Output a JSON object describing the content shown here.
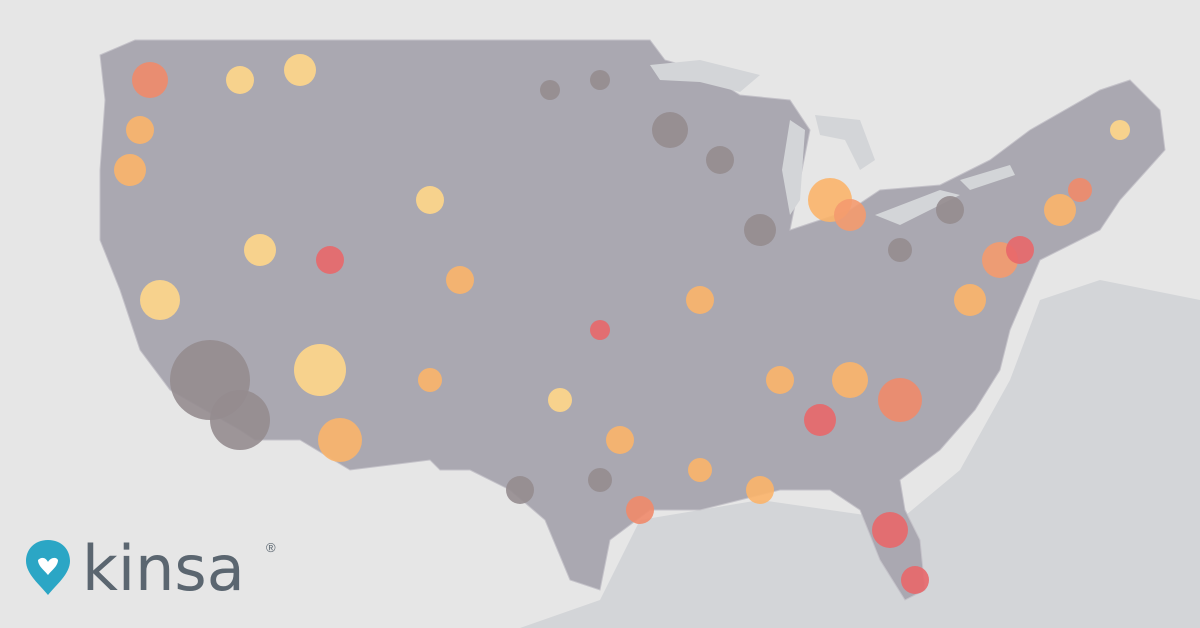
{
  "logo": {
    "text": "kinsa",
    "mark": "®"
  }
}
